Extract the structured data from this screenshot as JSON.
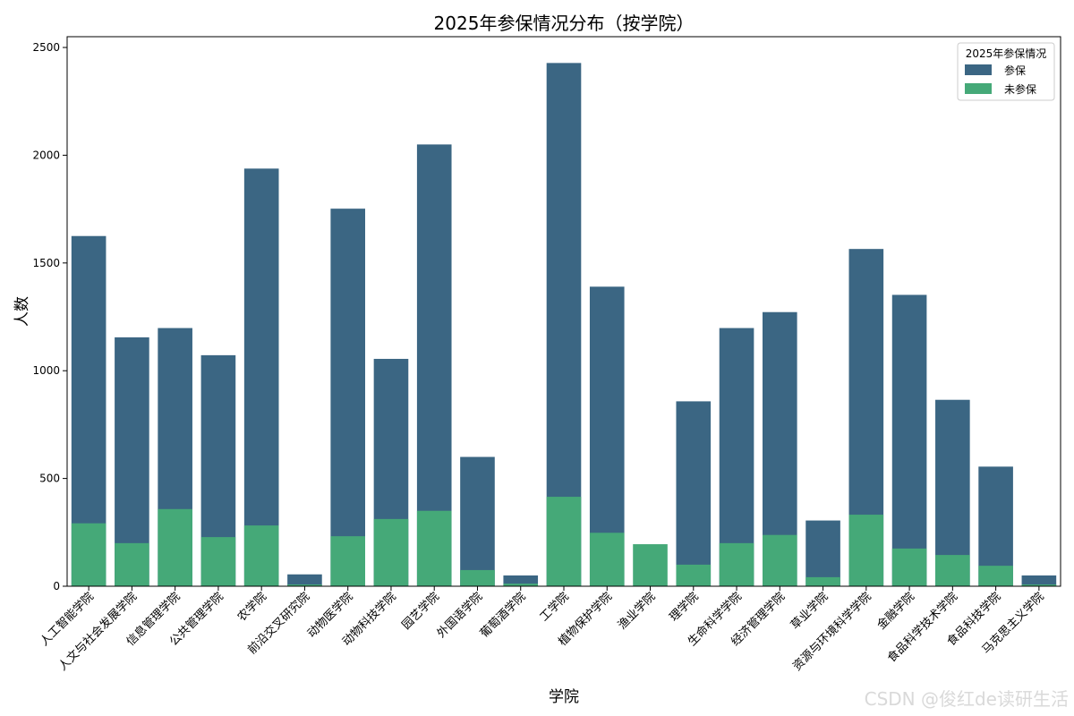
{
  "chart_data": {
    "type": "bar",
    "title": "2025年参保情况分布（按学院）",
    "xlabel": "学院",
    "ylabel": "人数",
    "ylim": [
      0,
      2550
    ],
    "yticks": [
      0,
      500,
      1000,
      1500,
      2000,
      2500
    ],
    "legend": {
      "title": "2025年参保情况",
      "placement": "top-right"
    },
    "categories": [
      "人工智能学院",
      "人文与社会发展学院",
      "信息管理学院",
      "公共管理学院",
      "农学院",
      "前沿交叉研究院",
      "动物医学院",
      "动物科技学院",
      "园艺学院",
      "外国语学院",
      "葡萄酒学院",
      "工学院",
      "植物保护学院",
      "渔业学院",
      "理学院",
      "生命科学学院",
      "经济管理学院",
      "草业学院",
      "资源与环境科学学院",
      "金融学院",
      "食品科学技术学院",
      "食品科技学院",
      "马克思主义学院"
    ],
    "series": [
      {
        "name": "参保",
        "color": "#3b6683",
        "values": [
          1625,
          1155,
          1198,
          1072,
          1938,
          55,
          1752,
          1055,
          2050,
          600,
          50,
          2428,
          1390,
          0,
          858,
          1198,
          1272,
          305,
          1565,
          1352,
          865,
          555,
          50
        ]
      },
      {
        "name": "未参保",
        "color": "#45a978",
        "values": [
          292,
          200,
          358,
          228,
          282,
          8,
          232,
          312,
          350,
          75,
          12,
          415,
          248,
          195,
          100,
          200,
          238,
          42,
          332,
          175,
          145,
          95,
          8
        ]
      }
    ]
  },
  "watermark": "CSDN @俊红de读研生活"
}
